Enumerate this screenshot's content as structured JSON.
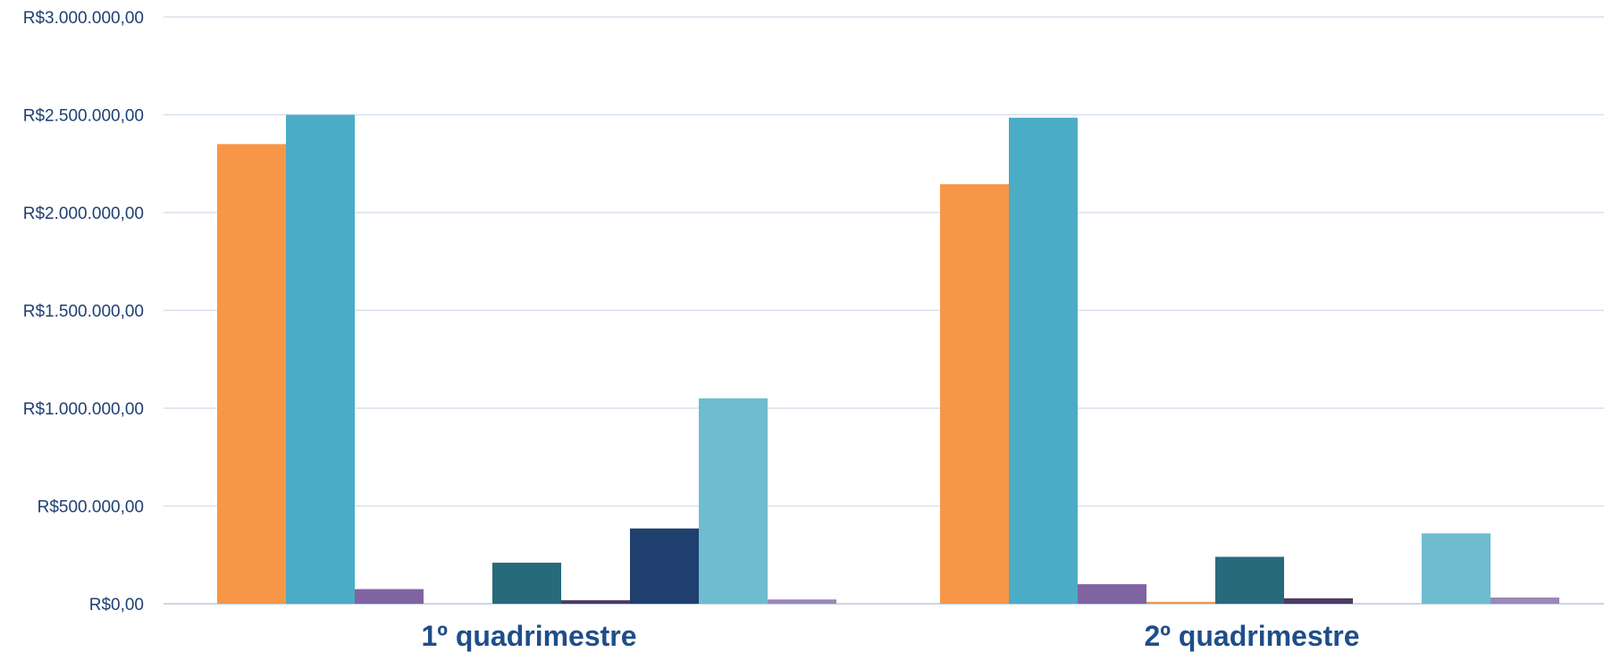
{
  "chart_data": {
    "type": "bar",
    "title": "",
    "xlabel": "",
    "ylabel": "",
    "ylim": [
      0,
      3000000
    ],
    "grid": true,
    "legend": "none",
    "categories": [
      "1º quadrimestre",
      "2º quadrimestre"
    ],
    "y_ticks": [
      {
        "value": 0,
        "label": "R$0,00"
      },
      {
        "value": 500000,
        "label": "R$500.000,00"
      },
      {
        "value": 1000000,
        "label": "R$1.000.000,00"
      },
      {
        "value": 1500000,
        "label": "R$1.500.000,00"
      },
      {
        "value": 2000000,
        "label": "R$2.000.000,00"
      },
      {
        "value": 2500000,
        "label": "R$2.500.000,00"
      },
      {
        "value": 3000000,
        "label": "R$3.000.000,00"
      }
    ],
    "series": [
      {
        "color": "#f79646",
        "values": [
          2350000,
          2145000
        ]
      },
      {
        "color": "#4bacc6",
        "values": [
          2500000,
          2485000
        ]
      },
      {
        "color": "#8064a2",
        "values": [
          75000,
          100000
        ]
      },
      {
        "color": "#f79646",
        "values": [
          0,
          10000
        ]
      },
      {
        "color": "#276a7c",
        "values": [
          210000,
          240000
        ]
      },
      {
        "color": "#4d3b62",
        "values": [
          18000,
          28000
        ]
      },
      {
        "color": "#1f3f6e",
        "values": [
          385000,
          0
        ]
      },
      {
        "color": "#6fbcd0",
        "values": [
          1050000,
          360000
        ]
      },
      {
        "color": "#9b87b8",
        "values": [
          22000,
          32000
        ]
      }
    ]
  }
}
